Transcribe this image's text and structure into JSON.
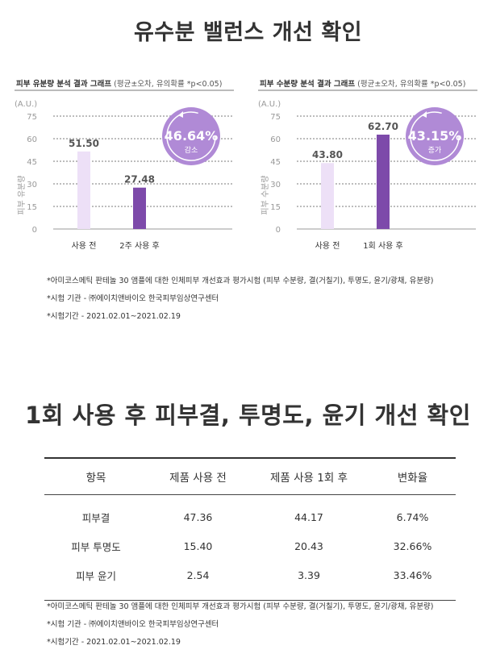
{
  "section1": {
    "title": "유수분 밸런스 개선 확인"
  },
  "charts": {
    "left": {
      "head_bold": "피부 유분량 분석 결과 그래프",
      "head_sub": "(평균±오차, 유의확률 *p<0.05)",
      "badge_value": "46.64%",
      "badge_label": "감소",
      "ylabel": "피부 유분량",
      "unit": "(A.U.)"
    },
    "right": {
      "head_bold": "피부 수분량 분석 결과 그래프",
      "head_sub": "(평균±오차, 유의확률 *p<0.05)",
      "badge_value": "43.15%",
      "badge_label": "증가",
      "ylabel": "피부 수분량",
      "unit": "(A.U.)"
    }
  },
  "chart_data": [
    {
      "type": "bar",
      "title": "피부 유분량 분석 결과 그래프",
      "ylabel": "피부 유분량",
      "unit": "(A.U.)",
      "categories": [
        "사용 전",
        "2주 사용 후"
      ],
      "values": [
        51.5,
        27.48
      ],
      "value_labels": [
        "51.50",
        "27.48"
      ],
      "ylim": [
        0,
        75
      ],
      "yticks": [
        0,
        15,
        30,
        45,
        60,
        75
      ],
      "grid": true,
      "colors": [
        "#ede0f7",
        "#7d4aaa"
      ]
    },
    {
      "type": "bar",
      "title": "피부 수분량 분석 결과 그래프",
      "ylabel": "피부 수분량",
      "unit": "(A.U.)",
      "categories": [
        "사용 전",
        "1회 사용 후"
      ],
      "values": [
        43.8,
        62.7
      ],
      "value_labels": [
        "43.80",
        "62.70"
      ],
      "ylim": [
        0,
        75
      ],
      "yticks": [
        0,
        15,
        30,
        45,
        60,
        75
      ],
      "grid": true,
      "colors": [
        "#ede0f7",
        "#7d4aaa"
      ]
    }
  ],
  "notes1": [
    "*아미코스메틱 판테놀 30 앰플에 대한 인체피부 개선효과 평가시험 (피부 수분량, 결(거칠기), 투명도, 윤기/광채, 유분량)",
    "*시험 기관 - ㈜에이치앤바이오 한국피부임상연구센터",
    "*시험기간 - 2021.02.01~2021.02.19"
  ],
  "section2": {
    "title": "1회 사용 후 피부결, 투명도, 윤기 개선 확인"
  },
  "table": {
    "headers": [
      "항목",
      "제품 사용 전",
      "제품 사용 1회 후",
      "변화율"
    ],
    "rows": [
      [
        "피부결",
        "47.36",
        "44.17",
        "6.74%"
      ],
      [
        "피부 투명도",
        "15.40",
        "20.43",
        "32.66%"
      ],
      [
        "피부 윤기",
        "2.54",
        "3.39",
        "33.46%"
      ]
    ]
  },
  "notes2": [
    "*아미코스메틱 판테놀 30 앰플에 대한 인체피부 개선효과 평가시험 (피부 수분량, 결(거칠기), 투명도, 윤기/광채, 유분량)",
    "*시험 기관 - ㈜에이치앤바이오 한국피부임상연구센터",
    "*시험기간 - 2021.02.01~2021.02.19"
  ],
  "colors": {
    "accent": "#a983d2",
    "bar_before": "#ede0f7",
    "bar_after": "#7d4aaa",
    "grid": "#bdbdbd"
  }
}
